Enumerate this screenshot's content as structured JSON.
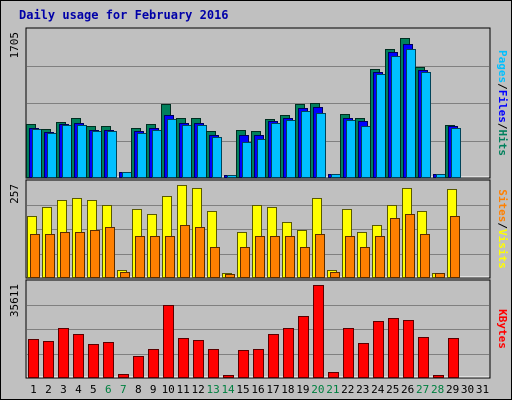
{
  "chart_data": {
    "type": "bar",
    "title": "Daily usage for February 2016",
    "x": [
      "1",
      "2",
      "3",
      "4",
      "5",
      "6",
      "7",
      "8",
      "9",
      "10",
      "11",
      "12",
      "13",
      "14",
      "15",
      "16",
      "17",
      "18",
      "19",
      "20",
      "21",
      "22",
      "23",
      "24",
      "25",
      "26",
      "27",
      "28",
      "29",
      "30",
      "31"
    ],
    "weekend_days": [
      "6",
      "7",
      "13",
      "14",
      "20",
      "21",
      "27",
      "28"
    ],
    "grid": true,
    "panels": [
      {
        "name": "hits-files-pages",
        "ymax_label": "1705",
        "ylim": [
          0,
          1705
        ],
        "legend": [
          "Pages",
          "/",
          "Files",
          "/",
          "Hits"
        ],
        "series": [
          {
            "name": "Hits",
            "color": "#00805c",
            "values": [
              630,
              570,
              650,
              700,
              600,
              600,
              0,
              580,
              630,
              870,
              700,
              700,
              540,
              0,
              560,
              540,
              690,
              740,
              860,
              880,
              0,
              750,
              700,
              1280,
              1520,
              1650,
              1300,
              0,
              620,
              0,
              0
            ]
          },
          {
            "name": "Files",
            "color": "#0000ff",
            "values": [
              580,
              530,
              630,
              640,
              560,
              560,
              60,
              540,
              580,
              730,
              640,
              640,
              500,
              20,
              500,
              500,
              660,
              700,
              820,
              830,
              40,
              700,
              660,
              1240,
              1480,
              1580,
              1270,
              40,
              600,
              0,
              0
            ]
          },
          {
            "name": "Pages",
            "color": "#00c0ff",
            "values": [
              570,
              520,
              620,
              620,
              550,
              550,
              60,
              520,
              560,
              690,
              610,
              610,
              470,
              20,
              420,
              450,
              640,
              680,
              780,
              760,
              40,
              680,
              600,
              1220,
              1430,
              1520,
              1240,
              40,
              580,
              0,
              0
            ]
          }
        ]
      },
      {
        "name": "visits-sites",
        "ymax_label": "257",
        "ylim": [
          0,
          257
        ],
        "legend": [
          "Sites",
          "/",
          "Visits"
        ],
        "series": [
          {
            "name": "Visits",
            "color": "#ffff00",
            "values": [
              170,
              195,
              215,
              220,
              215,
              200,
              20,
              190,
              175,
              225,
              257,
              250,
              185,
              10,
              125,
              200,
              195,
              155,
              130,
              220,
              20,
              190,
              125,
              145,
              200,
              250,
              185,
              10,
              245,
              0,
              0
            ]
          },
          {
            "name": "Sites",
            "color": "#ff8000",
            "values": [
              120,
              120,
              125,
              125,
              130,
              140,
              15,
              115,
              115,
              115,
              145,
              140,
              85,
              8,
              85,
              115,
              115,
              115,
              85,
              120,
              15,
              115,
              85,
              115,
              165,
              175,
              120,
              10,
              170,
              0,
              0
            ]
          }
        ]
      },
      {
        "name": "kbytes",
        "ymax_label": "35611",
        "ylim": [
          0,
          35611
        ],
        "legend": [
          "KBytes"
        ],
        "series": [
          {
            "name": "KBytes",
            "color": "#ff0000",
            "values": [
              14600,
              14100,
              18900,
              16600,
              12900,
              13500,
              1200,
              8100,
              10900,
              27900,
              15100,
              14200,
              10900,
              300,
              10300,
              10700,
              16700,
              19000,
              23600,
              35611,
              1800,
              19000,
              13200,
              21800,
              22800,
              22100,
              15500,
              400,
              15000,
              0,
              0
            ]
          }
        ]
      }
    ]
  },
  "colors": {
    "background": "#c0c0c0",
    "title": "#0000a8",
    "weekday_label": "#000000",
    "weekend_label": "#008040",
    "grid": "#808080"
  }
}
